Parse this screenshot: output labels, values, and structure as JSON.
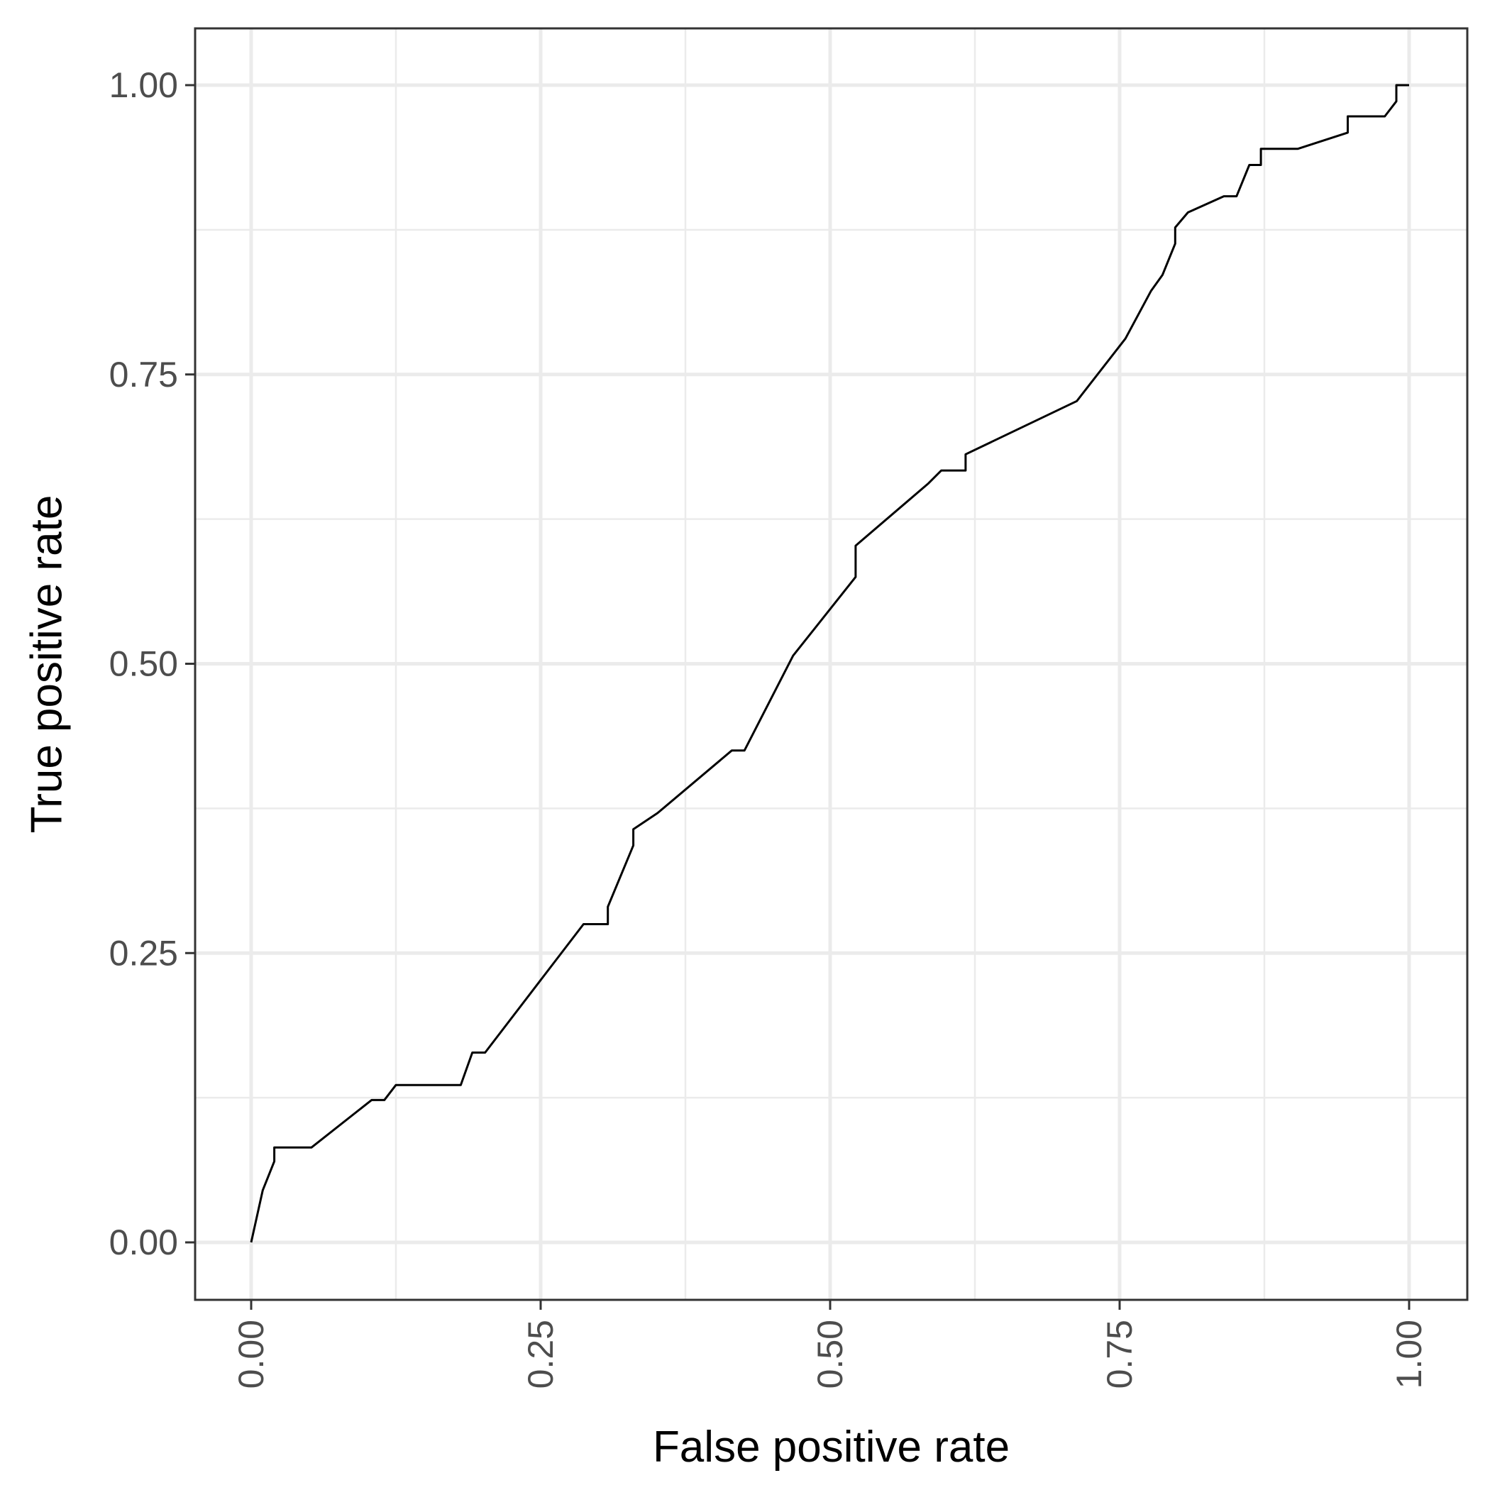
{
  "chart_data": {
    "type": "line",
    "title": "",
    "xlabel": "False positive rate",
    "ylabel": "True positive rate",
    "xlim": [
      -0.049,
      1.049
    ],
    "ylim": [
      -0.049,
      1.049
    ],
    "x_ticks": [
      0.0,
      0.25,
      0.5,
      0.75,
      1.0
    ],
    "x_tick_labels": [
      "0.00",
      "0.25",
      "0.50",
      "0.75",
      "1.00"
    ],
    "y_ticks": [
      0.0,
      0.25,
      0.5,
      0.75,
      1.0
    ],
    "y_tick_labels": [
      "0.00",
      "0.25",
      "0.50",
      "0.75",
      "1.00"
    ],
    "minor_ticks": [
      0.125,
      0.375,
      0.625,
      0.875
    ],
    "grid": true,
    "legend": "none",
    "colors": {
      "line": "#000000",
      "grid": "#ebebeb",
      "border": "#333333",
      "tick_text": "#4d4d4d"
    },
    "series": [
      {
        "x": [
          0.0,
          0.01,
          0.02,
          0.02,
          0.052,
          0.104,
          0.115,
          0.125,
          0.181,
          0.191,
          0.202,
          0.287,
          0.308,
          0.308,
          0.33,
          0.33,
          0.351,
          0.415,
          0.426,
          0.468,
          0.522,
          0.522,
          0.585,
          0.596,
          0.617,
          0.617,
          0.713,
          0.755,
          0.777,
          0.787,
          0.798,
          0.798,
          0.809,
          0.84,
          0.851,
          0.862,
          0.872,
          0.872,
          0.904,
          0.947,
          0.947,
          0.979,
          0.989,
          0.989,
          1.0
        ],
        "y": [
          0.0,
          0.045,
          0.07,
          0.082,
          0.082,
          0.123,
          0.123,
          0.136,
          0.136,
          0.164,
          0.164,
          0.275,
          0.275,
          0.29,
          0.343,
          0.357,
          0.371,
          0.425,
          0.425,
          0.507,
          0.575,
          0.602,
          0.656,
          0.667,
          0.667,
          0.681,
          0.727,
          0.781,
          0.822,
          0.836,
          0.863,
          0.877,
          0.89,
          0.904,
          0.904,
          0.931,
          0.931,
          0.945,
          0.945,
          0.959,
          0.973,
          0.973,
          0.986,
          1.0,
          1.0
        ]
      }
    ]
  }
}
